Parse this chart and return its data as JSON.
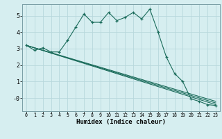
{
  "xlabel": "Humidex (Indice chaleur)",
  "ylabel": "",
  "background_color": "#d6eef0",
  "grid_color": "#b8d8dc",
  "line_color": "#1a6b5a",
  "xlim": [
    -0.5,
    23.5
  ],
  "ylim": [
    -0.8,
    5.7
  ],
  "ytick_labels": [
    "5",
    "4",
    "3",
    "2",
    "1",
    "-0"
  ],
  "ytick_values": [
    5,
    4,
    3,
    2,
    1,
    0
  ],
  "series": [
    {
      "x": [
        0,
        1,
        2,
        3,
        4,
        5,
        6,
        7,
        8,
        9,
        10,
        11,
        12,
        13,
        14,
        15,
        16,
        17,
        18,
        19,
        20,
        21,
        22,
        23
      ],
      "y": [
        3.2,
        2.9,
        3.05,
        2.8,
        2.8,
        3.5,
        4.3,
        5.1,
        4.6,
        4.6,
        5.2,
        4.7,
        4.9,
        5.2,
        4.8,
        5.4,
        4.0,
        2.5,
        1.5,
        1.0,
        -0.05,
        -0.2,
        -0.4,
        -0.45
      ]
    },
    {
      "x": [
        0,
        23
      ],
      "y": [
        3.2,
        -0.4
      ]
    },
    {
      "x": [
        0,
        23
      ],
      "y": [
        3.2,
        -0.3
      ]
    },
    {
      "x": [
        0,
        23
      ],
      "y": [
        3.2,
        -0.2
      ]
    }
  ]
}
